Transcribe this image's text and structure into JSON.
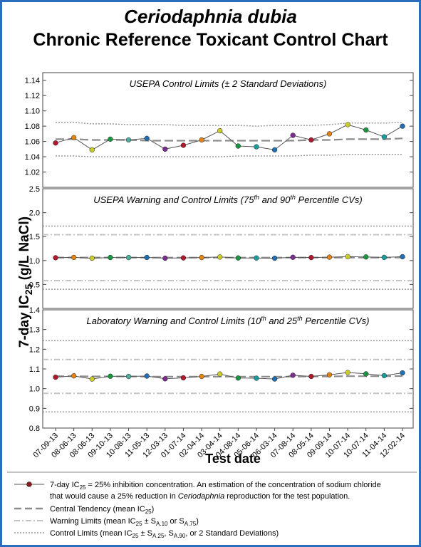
{
  "titles": {
    "species": "Ceriodaphnia dubia",
    "main": "Chronic Reference Toxicant Control Chart"
  },
  "chart_data": {
    "type": "line",
    "xlabel": "Test date",
    "ylabel": "7-day IC25 (g/L NaCl)",
    "x": [
      "07-09-13",
      "08-06-13",
      "08-06-13",
      "09-10-13",
      "10-08-13",
      "11-05-13",
      "12-03-13",
      "01-07-14",
      "02-04-14",
      "03-04-14",
      "04-08-14",
      "05-06-14",
      "06-03-14",
      "07-08-14",
      "08-05-14",
      "09-09-14",
      "10-07-14",
      "10-07-14",
      "11-04-14",
      "12-02-14"
    ],
    "point_colors": [
      "#b2182b",
      "#e08214",
      "#c9cc2a",
      "#1a9641",
      "#4dac9b",
      "#1f6fb4",
      "#7b2d8e",
      "#b2182b",
      "#e08214",
      "#c9cc2a",
      "#1a9641",
      "#1a9c9c",
      "#1f6fb4",
      "#7b2d8e",
      "#b2182b",
      "#e08214",
      "#c9cc2a",
      "#1a9641",
      "#1a9c9c",
      "#1f6fb4"
    ],
    "ic25": [
      1.058,
      1.065,
      1.049,
      1.063,
      1.062,
      1.064,
      1.05,
      1.055,
      1.062,
      1.074,
      1.054,
      1.053,
      1.049,
      1.068,
      1.062,
      1.07,
      1.082,
      1.075,
      1.066,
      1.08
    ],
    "central_tendency": [
      1.063,
      1.063,
      1.062,
      1.062,
      1.062,
      1.061,
      1.061,
      1.061,
      1.061,
      1.061,
      1.061,
      1.061,
      1.061,
      1.061,
      1.062,
      1.062,
      1.063,
      1.063,
      1.063,
      1.064
    ],
    "panels": [
      {
        "title": "USEPA Control Limits (± 2 Standard Deviations)",
        "ylim": [
          1.0,
          1.15
        ],
        "ticks": [
          "1.02",
          "1.04",
          "1.06",
          "1.08",
          "1.10",
          "1.12",
          "1.14"
        ],
        "tick_values": [
          1.02,
          1.04,
          1.06,
          1.08,
          1.1,
          1.12,
          1.14
        ],
        "control_upper": [
          1.085,
          1.085,
          1.083,
          1.083,
          1.082,
          1.082,
          1.082,
          1.081,
          1.081,
          1.081,
          1.081,
          1.08,
          1.081,
          1.081,
          1.081,
          1.082,
          1.084,
          1.084,
          1.084,
          1.085
        ],
        "control_lower": [
          1.041,
          1.041,
          1.04,
          1.04,
          1.04,
          1.04,
          1.04,
          1.04,
          1.04,
          1.04,
          1.041,
          1.041,
          1.041,
          1.041,
          1.042,
          1.042,
          1.043,
          1.043,
          1.043,
          1.043
        ]
      },
      {
        "title_pre": "USEPA Warning and Control Limits (75",
        "title_sup1": "th",
        "title_mid": " and 90",
        "title_sup2": "th",
        "title_post": " Percentile CVs)",
        "ylim": [
          0.0,
          2.5
        ],
        "ticks": [
          "0.5",
          "1.0",
          "1.5",
          "2.0",
          "2.5"
        ],
        "tick_values": [
          0.5,
          1.0,
          1.5,
          2.0,
          2.5
        ],
        "warning_upper": 1.54,
        "warning_lower": 0.58,
        "control_upper": 1.72,
        "control_lower": 0.4
      },
      {
        "title_pre": "Laboratory Warning and Control Limits (10",
        "title_sup1": "th",
        "title_mid": " and 25",
        "title_sup2": "th",
        "title_post": " Percentile CVs)",
        "ylim": [
          0.8,
          1.4
        ],
        "ticks": [
          "0.8",
          "0.9",
          "1.0",
          "1.1",
          "1.2",
          "1.3",
          "1.4"
        ],
        "tick_values": [
          0.8,
          0.9,
          1.0,
          1.1,
          1.2,
          1.3,
          1.4
        ],
        "warning_upper": 1.148,
        "warning_lower": 0.976,
        "control_upper": 1.243,
        "control_lower": 0.882
      }
    ]
  },
  "legend": {
    "ic25_line1": "7-day IC",
    "ic25_sub": "25",
    "ic25_rest": " = 25% inhibition concentration.  An estimation of the concentration of sodium chloride",
    "ic25_line2_pre": "that would cause a 25% reduction in ",
    "ic25_line2_italic": "Ceriodaphnia",
    "ic25_line2_post": " reproduction for the test population.",
    "central_pre": "Central Tendency (mean IC",
    "central_sub": "25",
    "central_post": ")",
    "warning_pre": "Warning Limits (mean IC",
    "warning_sub": "25",
    "warning_mid1": " ± S",
    "warning_sub2": "A.10",
    "warning_mid2": " or  S",
    "warning_sub3": "A.75",
    "warning_post": ")",
    "control_pre": "Control Limits (mean IC",
    "control_sub": "25",
    "control_mid1": " ± S",
    "control_sub2": "A.25",
    "control_mid2": ", S",
    "control_sub3": "A.90",
    "control_post": ", or 2 Standard Deviations)"
  },
  "colors": {
    "frame": "#2a6ebb",
    "series_line": "#555555",
    "central": "#8c8c8c",
    "warning": "#c4c4c4",
    "control": "#9a9a9a",
    "legend_marker": "#8b1a1a"
  }
}
